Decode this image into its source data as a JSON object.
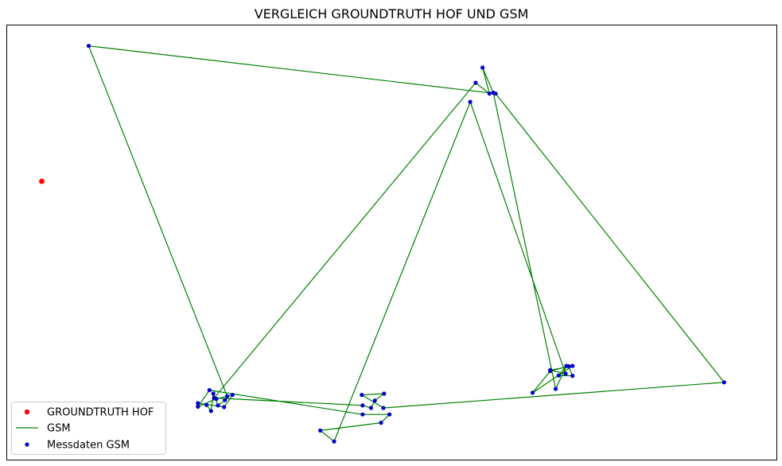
{
  "chart_data": {
    "type": "scatter",
    "title": "VERGLEICH GROUNDTRUTH HOF UND GSM",
    "xlabel": "",
    "ylabel": "",
    "xlim": [
      0,
      1000
    ],
    "ylim": [
      0,
      1000
    ],
    "axis_ticks": false,
    "grid": false,
    "legend_placement": "lower-left",
    "series": [
      {
        "name": "GROUNDTRUTH HOF",
        "kind": "scatter",
        "color": "#ff0000",
        "points": [
          [
            45,
            641
          ]
        ]
      },
      {
        "name": "GSM",
        "kind": "line",
        "color": "#008000",
        "points": [
          [
            106,
            953
          ],
          [
            635,
            843
          ],
          [
            932,
            178
          ],
          [
            489,
            119
          ],
          [
            461,
            149
          ],
          [
            490,
            152
          ],
          [
            478,
            136
          ],
          [
            473,
            119
          ],
          [
            462,
            125
          ],
          [
            269,
            142
          ],
          [
            609,
            868
          ],
          [
            627,
            843
          ],
          [
            618,
            903
          ],
          [
            632,
            845
          ],
          [
            713,
            163
          ],
          [
            727,
            216
          ],
          [
            717,
            194
          ],
          [
            735,
            193
          ],
          [
            730,
            215
          ],
          [
            706,
            204
          ],
          [
            683,
            154
          ],
          [
            735,
            216
          ],
          [
            706,
            206
          ],
          [
            726,
            198
          ],
          [
            602,
            824
          ],
          [
            425,
            42
          ],
          [
            407,
            67
          ],
          [
            486,
            85
          ],
          [
            497,
            104
          ],
          [
            462,
            104
          ],
          [
            263,
            160
          ],
          [
            248,
            122
          ],
          [
            272,
            140
          ],
          [
            293,
            149
          ],
          [
            282,
            121
          ],
          [
            248,
            130
          ],
          [
            259,
            126
          ],
          [
            265,
            112
          ],
          [
            268,
            152
          ],
          [
            274,
            125
          ],
          [
            283,
            137
          ],
          [
            286,
            146
          ],
          [
            106,
            953
          ]
        ]
      },
      {
        "name": "Messdaten GSM",
        "kind": "scatter",
        "color": "#0000cc",
        "points": [
          [
            106,
            953
          ],
          [
            635,
            843
          ],
          [
            932,
            178
          ],
          [
            489,
            119
          ],
          [
            461,
            149
          ],
          [
            490,
            152
          ],
          [
            478,
            136
          ],
          [
            473,
            119
          ],
          [
            462,
            125
          ],
          [
            269,
            142
          ],
          [
            609,
            868
          ],
          [
            627,
            843
          ],
          [
            618,
            903
          ],
          [
            632,
            845
          ],
          [
            713,
            163
          ],
          [
            727,
            216
          ],
          [
            717,
            194
          ],
          [
            735,
            193
          ],
          [
            730,
            215
          ],
          [
            706,
            204
          ],
          [
            683,
            154
          ],
          [
            735,
            216
          ],
          [
            706,
            206
          ],
          [
            726,
            198
          ],
          [
            602,
            824
          ],
          [
            425,
            42
          ],
          [
            407,
            67
          ],
          [
            486,
            85
          ],
          [
            497,
            104
          ],
          [
            462,
            104
          ],
          [
            263,
            160
          ],
          [
            248,
            122
          ],
          [
            272,
            140
          ],
          [
            293,
            149
          ],
          [
            282,
            121
          ],
          [
            248,
            130
          ],
          [
            259,
            126
          ],
          [
            265,
            112
          ],
          [
            268,
            152
          ],
          [
            274,
            125
          ],
          [
            283,
            137
          ],
          [
            286,
            146
          ]
        ]
      }
    ]
  }
}
